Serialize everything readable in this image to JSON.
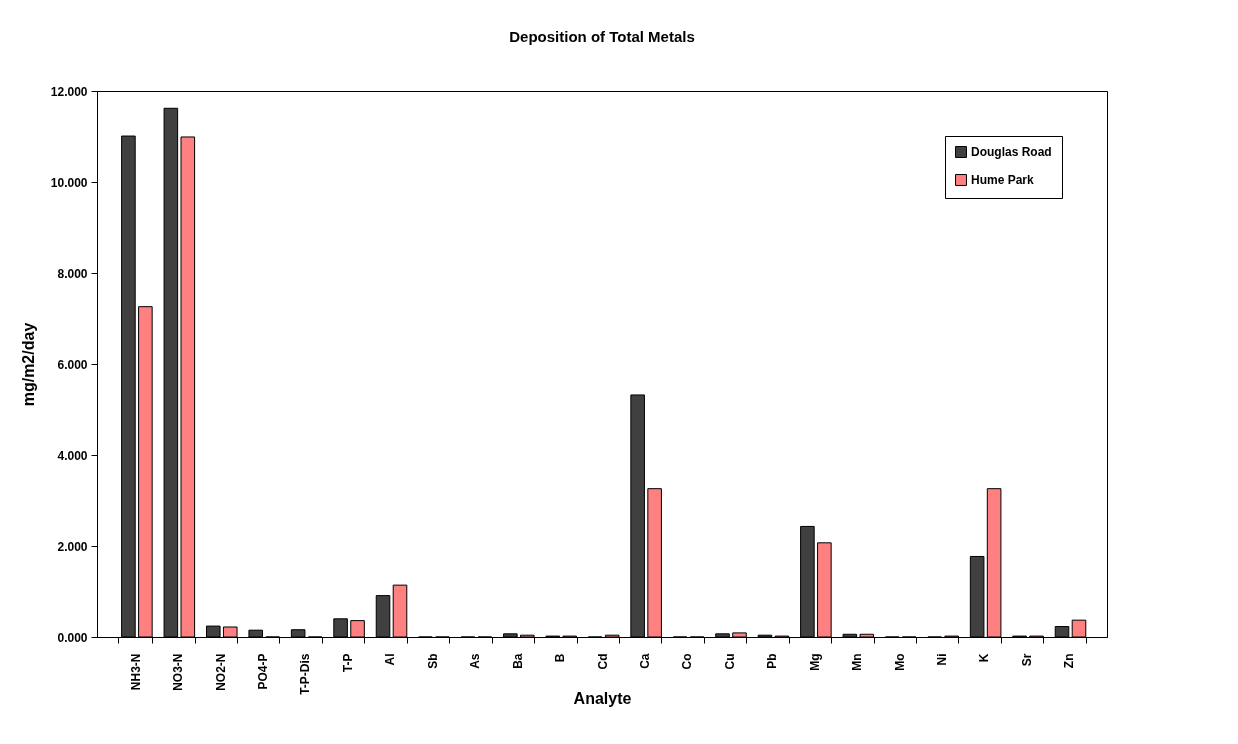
{
  "chart_data": {
    "type": "bar",
    "title": "Deposition of Total Metals",
    "xlabel": "Analyte",
    "ylabel": "mg/m2/day",
    "categories": [
      "NH3-N",
      "NO3-N",
      "NO2-N",
      "PO4-P",
      "T-P-Dis",
      "T-P",
      "Al",
      "Sb",
      "As",
      "Ba",
      "B",
      "Cd",
      "Ca",
      "Co",
      "Cu",
      "Pb",
      "Mg",
      "Mn",
      "Mo",
      "Ni",
      "K",
      "Sr",
      "Zn"
    ],
    "series": [
      {
        "name": "Douglas Road",
        "color": "#404040",
        "values": [
          11.01,
          11.62,
          0.24,
          0.15,
          0.16,
          0.4,
          0.91,
          0,
          0,
          0.07,
          0.02,
          0,
          5.32,
          0,
          0.07,
          0.04,
          2.43,
          0.06,
          0,
          0,
          1.77,
          0.02,
          0.23
        ]
      },
      {
        "name": "Hume Park",
        "color": "#ff8080",
        "values": [
          7.26,
          10.99,
          0.22,
          0,
          0,
          0.36,
          1.14,
          0,
          0,
          0.04,
          0.02,
          0.04,
          3.26,
          0,
          0.09,
          0.02,
          2.07,
          0.06,
          0,
          0.02,
          3.26,
          0.02,
          0.37
        ]
      }
    ],
    "ylim": [
      0,
      12
    ],
    "yticks": [
      {
        "value": 0,
        "label": "0.000"
      },
      {
        "value": 2,
        "label": "2.000"
      },
      {
        "value": 4,
        "label": "4.000"
      },
      {
        "value": 6,
        "label": "6.000"
      },
      {
        "value": 8,
        "label": "8.000"
      },
      {
        "value": 10,
        "label": "10.000"
      },
      {
        "value": 12,
        "label": "12.000"
      }
    ],
    "grid": false,
    "legend": "top right"
  }
}
